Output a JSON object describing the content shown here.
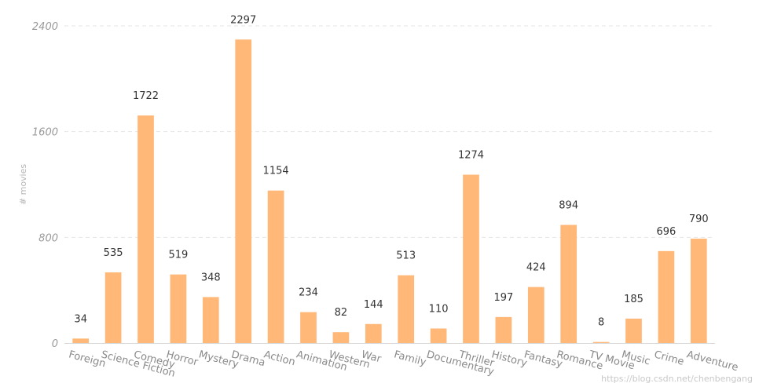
{
  "chart_data": {
    "type": "bar",
    "ylabel": "# movies",
    "ylim": [
      0,
      2400
    ],
    "yticks": [
      0,
      800,
      1600,
      2400
    ],
    "grid": true,
    "bar_color": "#ffb877",
    "categories": [
      "Foreign",
      "Science Fiction",
      "Comedy",
      "Horror",
      "Mystery",
      "Drama",
      "Action",
      "Animation",
      "Western",
      "War",
      "Family",
      "Documentary",
      "Thriller",
      "History",
      "Fantasy",
      "Romance",
      "TV Movie",
      "Music",
      "Crime",
      "Adventure"
    ],
    "values": [
      34,
      535,
      1722,
      519,
      348,
      2297,
      1154,
      234,
      82,
      144,
      513,
      110,
      1274,
      197,
      424,
      894,
      8,
      185,
      696,
      790
    ],
    "data_labels": [
      "34",
      "535",
      "1722",
      "519",
      "348",
      "2297",
      "1154",
      "234",
      "82",
      "144",
      "513",
      "110",
      "1274",
      "197",
      "424",
      "894",
      "8",
      "185",
      "696",
      "790"
    ],
    "ytick_labels": [
      "0",
      "800",
      "1600",
      "2400"
    ]
  },
  "watermark": "https://blog.csdn.net/chenbengang"
}
